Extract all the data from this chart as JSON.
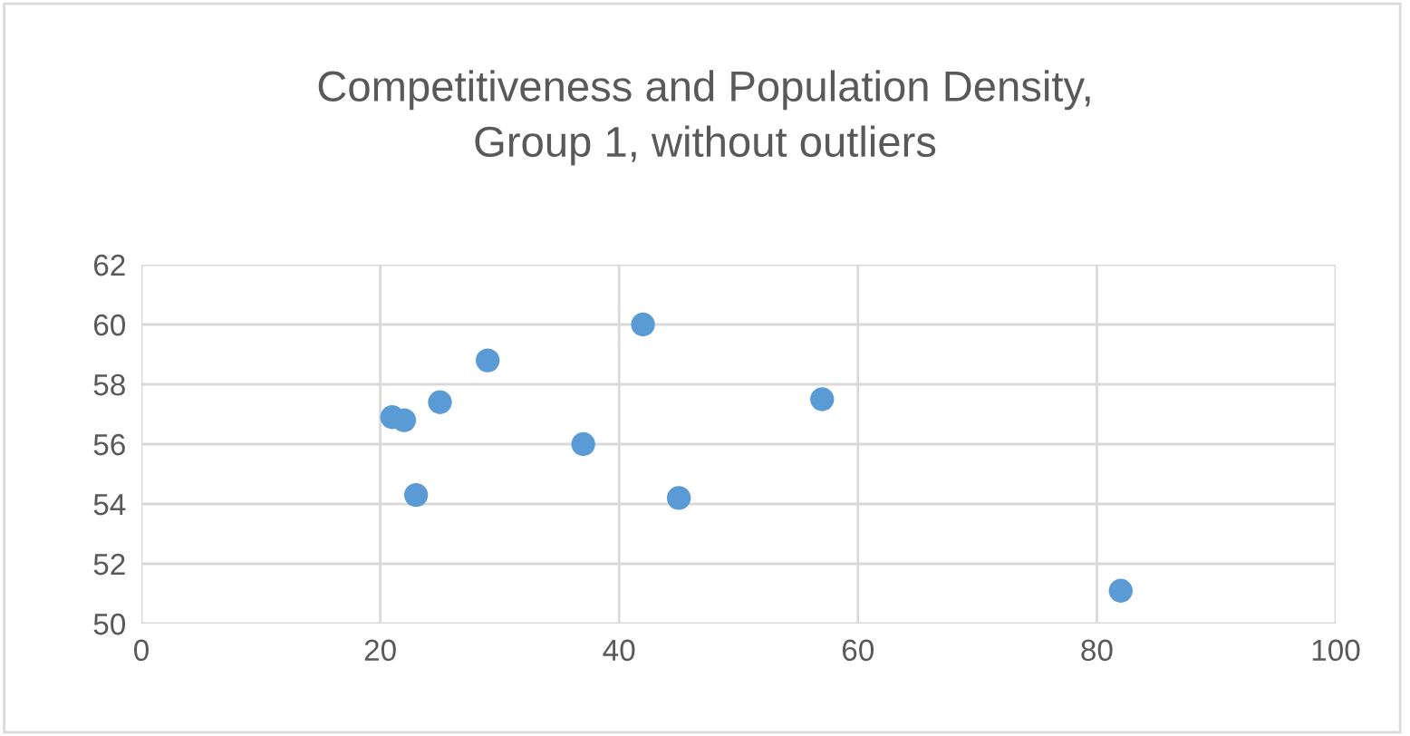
{
  "chart_data": {
    "type": "scatter",
    "title": "Competitiveness and Population Density,\nGroup 1, without outliers",
    "x": [
      21,
      22,
      25,
      29,
      23,
      37,
      42,
      45,
      57,
      82
    ],
    "values": [
      56.9,
      56.8,
      57.4,
      58.8,
      54.3,
      56.0,
      60.0,
      54.2,
      57.5,
      51.1
    ],
    "color": "#5b9bd5",
    "marker": "circle",
    "xlim": [
      0,
      100
    ],
    "xticks": [
      0,
      20,
      40,
      60,
      80,
      100
    ],
    "ylim": [
      50,
      62
    ],
    "yticks": [
      50,
      52,
      54,
      56,
      58,
      60,
      62
    ],
    "grid": true
  }
}
